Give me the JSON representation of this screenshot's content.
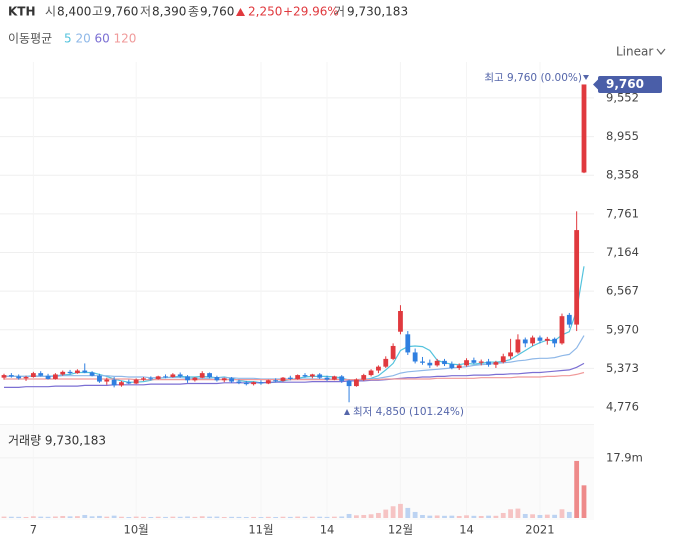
{
  "header": {
    "symbol": "KTH",
    "open_label": "시",
    "open": "8,400",
    "high_label": "고",
    "high": "9,760",
    "low_label": "저",
    "low": "8,390",
    "close_label": "종",
    "close": "9,760",
    "change": "2,250",
    "change_pct": "+29.96%",
    "volume_label": "거",
    "volume": "9,730,183"
  },
  "scale_menu": "Linear",
  "chart_data": {
    "type": "candlestick",
    "ma_title": "이동평균",
    "categories": [
      null,
      null,
      null,
      null,
      "7",
      null,
      null,
      null,
      null,
      null,
      null,
      null,
      null,
      null,
      null,
      null,
      null,
      null,
      "10월",
      null,
      null,
      null,
      null,
      null,
      null,
      null,
      null,
      null,
      null,
      null,
      null,
      null,
      null,
      null,
      null,
      "11월",
      null,
      null,
      null,
      null,
      null,
      null,
      null,
      null,
      "14",
      null,
      null,
      null,
      null,
      null,
      null,
      null,
      null,
      null,
      "12월",
      null,
      null,
      null,
      null,
      null,
      null,
      null,
      null,
      "14",
      null,
      null,
      null,
      null,
      null,
      null,
      null,
      null,
      null,
      "2021",
      null,
      null,
      null,
      null,
      null,
      null
    ],
    "open": [
      5230,
      5270,
      5250,
      5220,
      5240,
      5300,
      5260,
      5210,
      5280,
      5320,
      5300,
      5340,
      5310,
      5260,
      5170,
      5200,
      5110,
      5160,
      5140,
      5200,
      5220,
      5210,
      5250,
      5240,
      5280,
      5250,
      5190,
      5230,
      5300,
      5240,
      5190,
      5220,
      5170,
      5150,
      5130,
      5160,
      5140,
      5190,
      5180,
      5230,
      5210,
      5270,
      5250,
      5280,
      5230,
      5200,
      5250,
      5180,
      5100,
      5200,
      5270,
      5340,
      5400,
      5520,
      5940,
      5900,
      5620,
      5480,
      5460,
      5420,
      5490,
      5440,
      5380,
      5420,
      5500,
      5460,
      5480,
      5430,
      5470,
      5560,
      5620,
      5820,
      5760,
      5850,
      5800,
      5830,
      5760,
      6200,
      6050,
      8400
    ],
    "high": [
      5290,
      5300,
      5280,
      5260,
      5320,
      5330,
      5290,
      5300,
      5340,
      5350,
      5360,
      5450,
      5330,
      5290,
      5230,
      5240,
      5180,
      5200,
      5220,
      5240,
      5250,
      5260,
      5280,
      5300,
      5310,
      5270,
      5240,
      5330,
      5310,
      5260,
      5230,
      5240,
      5200,
      5180,
      5170,
      5190,
      5200,
      5220,
      5240,
      5260,
      5280,
      5300,
      5290,
      5300,
      5260,
      5260,
      5270,
      5200,
      5220,
      5290,
      5360,
      5420,
      5560,
      5760,
      6350,
      5950,
      5680,
      5550,
      5510,
      5520,
      5520,
      5480,
      5450,
      5530,
      5540,
      5510,
      5520,
      5490,
      5600,
      5830,
      5900,
      5850,
      5880,
      5880,
      5860,
      5850,
      6220,
      6230,
      7800,
      9760
    ],
    "low": [
      5200,
      5230,
      5200,
      5180,
      5230,
      5250,
      5200,
      5200,
      5260,
      5280,
      5290,
      5300,
      5250,
      5150,
      5120,
      5080,
      5090,
      5130,
      5130,
      5180,
      5190,
      5200,
      5220,
      5230,
      5230,
      5150,
      5170,
      5220,
      5220,
      5170,
      5160,
      5150,
      5130,
      5110,
      5110,
      5120,
      5130,
      5160,
      5170,
      5190,
      5200,
      5230,
      5220,
      5210,
      5180,
      5190,
      5150,
      4850,
      5090,
      5180,
      5250,
      5300,
      5380,
      5500,
      5900,
      5580,
      5450,
      5430,
      5380,
      5400,
      5410,
      5360,
      5350,
      5400,
      5440,
      5420,
      5400,
      5380,
      5450,
      5520,
      5600,
      5700,
      5720,
      5760,
      5740,
      5700,
      5740,
      6000,
      5950,
      8390
    ],
    "close": [
      5270,
      5250,
      5220,
      5240,
      5300,
      5260,
      5210,
      5280,
      5320,
      5300,
      5340,
      5310,
      5260,
      5170,
      5200,
      5110,
      5160,
      5140,
      5200,
      5220,
      5210,
      5250,
      5240,
      5280,
      5250,
      5190,
      5230,
      5300,
      5240,
      5190,
      5220,
      5170,
      5150,
      5130,
      5160,
      5140,
      5190,
      5180,
      5230,
      5210,
      5270,
      5250,
      5280,
      5230,
      5200,
      5250,
      5180,
      5100,
      5200,
      5270,
      5340,
      5400,
      5520,
      5720,
      6260,
      5620,
      5480,
      5460,
      5420,
      5490,
      5440,
      5380,
      5420,
      5500,
      5460,
      5480,
      5430,
      5470,
      5560,
      5620,
      5820,
      5760,
      5850,
      5800,
      5830,
      5760,
      6180,
      6050,
      7510,
      9760
    ],
    "up_color": "#e0393e",
    "down_color": "#2f7fe0",
    "ma_series": [
      {
        "name": "5",
        "color": "#54c3dd",
        "values": [
          5250,
          5250,
          5250,
          5250,
          5260,
          5250,
          5250,
          5260,
          5270,
          5280,
          5310,
          5310,
          5310,
          5280,
          5250,
          5210,
          5180,
          5160,
          5160,
          5170,
          5190,
          5220,
          5230,
          5240,
          5250,
          5240,
          5240,
          5250,
          5240,
          5230,
          5240,
          5220,
          5190,
          5170,
          5170,
          5150,
          5150,
          5160,
          5180,
          5200,
          5220,
          5240,
          5250,
          5250,
          5250,
          5240,
          5230,
          5190,
          5190,
          5200,
          5220,
          5260,
          5350,
          5450,
          5650,
          5710,
          5720,
          5710,
          5650,
          5500,
          5460,
          5440,
          5430,
          5450,
          5440,
          5450,
          5470,
          5470,
          5480,
          5510,
          5580,
          5650,
          5720,
          5770,
          5810,
          5800,
          5890,
          5940,
          6270,
          6950
        ]
      },
      {
        "name": "20",
        "color": "#8fb8e8",
        "values": [
          5250,
          5250,
          5250,
          5250,
          5250,
          5250,
          5250,
          5250,
          5260,
          5260,
          5260,
          5260,
          5260,
          5260,
          5260,
          5250,
          5250,
          5240,
          5240,
          5240,
          5230,
          5230,
          5230,
          5230,
          5230,
          5220,
          5220,
          5220,
          5220,
          5230,
          5230,
          5230,
          5220,
          5220,
          5220,
          5210,
          5210,
          5210,
          5210,
          5210,
          5210,
          5210,
          5210,
          5210,
          5210,
          5210,
          5210,
          5200,
          5200,
          5210,
          5210,
          5220,
          5240,
          5260,
          5300,
          5320,
          5330,
          5340,
          5350,
          5360,
          5370,
          5380,
          5390,
          5400,
          5420,
          5430,
          5440,
          5450,
          5460,
          5470,
          5490,
          5500,
          5520,
          5530,
          5530,
          5540,
          5570,
          5590,
          5690,
          5880
        ]
      },
      {
        "name": "60",
        "color": "#7b6fd3",
        "values": [
          5080,
          5080,
          5080,
          5090,
          5090,
          5090,
          5090,
          5100,
          5100,
          5100,
          5100,
          5110,
          5110,
          5110,
          5110,
          5120,
          5120,
          5120,
          5120,
          5120,
          5130,
          5130,
          5130,
          5130,
          5130,
          5140,
          5140,
          5140,
          5140,
          5140,
          5150,
          5150,
          5150,
          5150,
          5150,
          5150,
          5160,
          5160,
          5160,
          5160,
          5160,
          5160,
          5170,
          5170,
          5170,
          5170,
          5170,
          5180,
          5180,
          5180,
          5190,
          5190,
          5200,
          5210,
          5220,
          5230,
          5230,
          5240,
          5240,
          5250,
          5250,
          5260,
          5260,
          5260,
          5270,
          5270,
          5270,
          5280,
          5280,
          5290,
          5290,
          5300,
          5310,
          5310,
          5320,
          5330,
          5340,
          5350,
          5390,
          5450
        ]
      },
      {
        "name": "120",
        "color": "#f09a9a",
        "values": [
          5210,
          5210,
          5210,
          5210,
          5210,
          5210,
          5210,
          5210,
          5210,
          5210,
          5210,
          5210,
          5210,
          5210,
          5210,
          5210,
          5210,
          5210,
          5200,
          5200,
          5200,
          5200,
          5200,
          5200,
          5200,
          5200,
          5200,
          5200,
          5200,
          5200,
          5200,
          5200,
          5200,
          5200,
          5200,
          5200,
          5200,
          5200,
          5200,
          5200,
          5200,
          5200,
          5200,
          5200,
          5200,
          5200,
          5200,
          5200,
          5200,
          5200,
          5200,
          5200,
          5210,
          5210,
          5210,
          5210,
          5210,
          5210,
          5210,
          5220,
          5220,
          5220,
          5220,
          5220,
          5220,
          5230,
          5230,
          5230,
          5230,
          5230,
          5240,
          5240,
          5240,
          5240,
          5250,
          5250,
          5260,
          5260,
          5280,
          5310
        ]
      }
    ],
    "ylim": [
      4576,
      10107
    ],
    "yticks": [
      {
        "value": 9552,
        "label": "9,552"
      },
      {
        "value": 8955,
        "label": "8,955"
      },
      {
        "value": 8358,
        "label": "8,358"
      },
      {
        "value": 7761,
        "label": "7,761"
      },
      {
        "value": 7164,
        "label": "7,164"
      },
      {
        "value": 6567,
        "label": "6,567"
      },
      {
        "value": 5970,
        "label": "5,970"
      },
      {
        "value": 5373,
        "label": "5,373"
      },
      {
        "value": 4776,
        "label": "4,776"
      }
    ],
    "grid": true,
    "current_price": {
      "value": 9760,
      "label": "9,760"
    },
    "high_annotation": "최고 9,760 (0.00%)",
    "low_annotation": "최저 4,850 (101.24%)",
    "volume_title": "거래량 9,730,183",
    "volume": [
      420000,
      380000,
      350000,
      300000,
      520000,
      400000,
      360000,
      450000,
      600000,
      480000,
      550000,
      900000,
      500000,
      620000,
      400000,
      700000,
      380000,
      300000,
      420000,
      350000,
      300000,
      380000,
      320000,
      400000,
      360000,
      450000,
      330000,
      520000,
      400000,
      420000,
      300000,
      350000,
      330000,
      300000,
      320000,
      280000,
      350000,
      300000,
      380000,
      330000,
      420000,
      360000,
      400000,
      380000,
      330000,
      400000,
      450000,
      1200000,
      800000,
      900000,
      1100000,
      1500000,
      2500000,
      3500000,
      4200000,
      3000000,
      1800000,
      900000,
      700000,
      750000,
      650000,
      700000,
      600000,
      800000,
      650000,
      600000,
      700000,
      650000,
      1500000,
      2600000,
      2800000,
      1200000,
      1100000,
      900000,
      1000000,
      950000,
      2600000,
      1800000,
      17000000,
      9730183
    ],
    "volume_ylim": [
      0,
      27700000
    ],
    "volume_yticks": [
      {
        "value": 17900000,
        "label": "17.9m"
      }
    ]
  }
}
